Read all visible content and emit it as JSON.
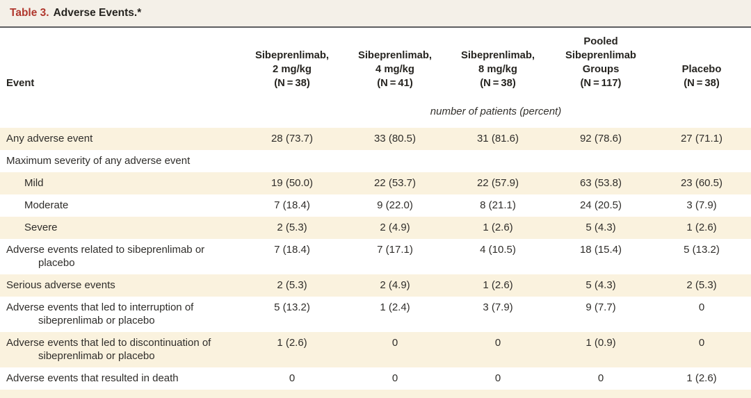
{
  "table": {
    "label": "Table 3.",
    "title": "Adverse Events.*",
    "unit_note": "number of patients (percent)",
    "colors": {
      "accent_red": "#b0372d",
      "stripe_cream": "#faf2de",
      "title_band": "#f4f0e8",
      "rule_gray": "#5c5e60",
      "text": "#2f2d2a"
    },
    "columns": [
      {
        "name": "event",
        "lines": [
          "Event"
        ]
      },
      {
        "name": "sibeprenlimab-2mg",
        "lines": [
          "Sibeprenlimab,",
          "2 mg/kg",
          "(N = 38)"
        ]
      },
      {
        "name": "sibeprenlimab-4mg",
        "lines": [
          "Sibeprenlimab,",
          "4 mg/kg",
          "(N = 41)"
        ]
      },
      {
        "name": "sibeprenlimab-8mg",
        "lines": [
          "Sibeprenlimab,",
          "8 mg/kg",
          "(N = 38)"
        ]
      },
      {
        "name": "pooled-sibeprenlimab",
        "lines": [
          "Pooled",
          "Sibeprenlimab",
          "Groups",
          "(N = 117)"
        ]
      },
      {
        "name": "placebo",
        "lines": [
          "Placebo",
          "(N = 38)"
        ]
      }
    ],
    "rows": [
      {
        "label": "Any adverse event",
        "indent": 0,
        "values": [
          "28 (73.7)",
          "33 (80.5)",
          "31 (81.6)",
          "92 (78.6)",
          "27 (71.1)"
        ]
      },
      {
        "label": "Maximum severity of any adverse event",
        "indent": 0,
        "values": [
          "",
          "",
          "",
          "",
          ""
        ]
      },
      {
        "label": "Mild",
        "indent": 1,
        "values": [
          "19 (50.0)",
          "22 (53.7)",
          "22 (57.9)",
          "63 (53.8)",
          "23 (60.5)"
        ]
      },
      {
        "label": "Moderate",
        "indent": 1,
        "values": [
          "7 (18.4)",
          "9 (22.0)",
          "8 (21.1)",
          "24 (20.5)",
          "3 (7.9)"
        ]
      },
      {
        "label": "Severe",
        "indent": 1,
        "values": [
          "2 (5.3)",
          "2 (4.9)",
          "1 (2.6)",
          "5 (4.3)",
          "1 (2.6)"
        ]
      },
      {
        "label": "Adverse events related to sibeprenlimab or placebo",
        "indent": 0,
        "values": [
          "7 (18.4)",
          "7 (17.1)",
          "4 (10.5)",
          "18 (15.4)",
          "5 (13.2)"
        ]
      },
      {
        "label": "Serious adverse events",
        "indent": 0,
        "values": [
          "2 (5.3)",
          "2 (4.9)",
          "1 (2.6)",
          "5 (4.3)",
          "2 (5.3)"
        ]
      },
      {
        "label": "Adverse events that led to interruption of sibeprenlimab or placebo",
        "indent": 0,
        "values": [
          "5 (13.2)",
          "1 (2.4)",
          "3 (7.9)",
          "9 (7.7)",
          "0"
        ]
      },
      {
        "label": "Adverse events that led to discontinuation of sibeprenlimab or placebo",
        "indent": 0,
        "values": [
          "1 (2.6)",
          "0",
          "0",
          "1 (0.9)",
          "0"
        ]
      },
      {
        "label": "Adverse events that resulted in death",
        "indent": 0,
        "values": [
          "0",
          "0",
          "0",
          "0",
          "1 (2.6)"
        ]
      }
    ]
  }
}
